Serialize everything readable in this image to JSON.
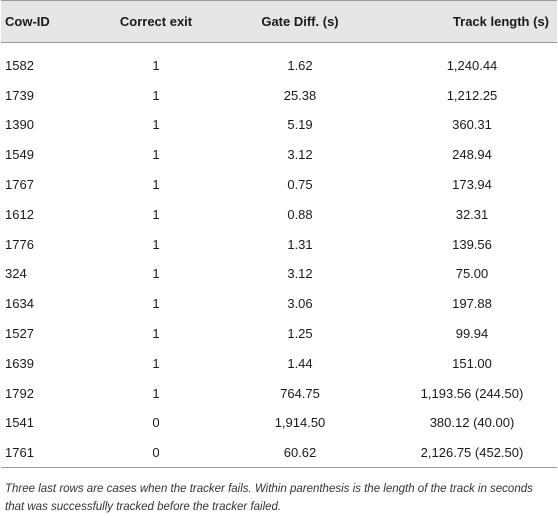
{
  "table": {
    "columns": [
      "Cow-ID",
      "Correct exit",
      "Gate Diff. (s)",
      "Track length (s)"
    ],
    "rows": [
      [
        "1582",
        "1",
        "1.62",
        "1,240.44"
      ],
      [
        "1739",
        "1",
        "25.38",
        "1,212.25"
      ],
      [
        "1390",
        "1",
        "5.19",
        "360.31"
      ],
      [
        "1549",
        "1",
        "3.12",
        "248.94"
      ],
      [
        "1767",
        "1",
        "0.75",
        "173.94"
      ],
      [
        "1612",
        "1",
        "0.88",
        "32.31"
      ],
      [
        "1776",
        "1",
        "1.31",
        "139.56"
      ],
      [
        "324",
        "1",
        "3.12",
        "75.00"
      ],
      [
        "1634",
        "1",
        "3.06",
        "197.88"
      ],
      [
        "1527",
        "1",
        "1.25",
        "99.94"
      ],
      [
        "1639",
        "1",
        "1.44",
        "151.00"
      ],
      [
        "1792",
        "1",
        "764.75",
        "1,193.56 (244.50)"
      ],
      [
        "1541",
        "0",
        "1,914.50",
        "380.12 (40.00)"
      ],
      [
        "1761",
        "0",
        "60.62",
        "2,126.75 (452.50)"
      ]
    ],
    "footnote": "Three last rows are cases when the tracker fails. Within parenthesis is the length of the track in seconds that was successfully tracked before the tracker failed."
  }
}
